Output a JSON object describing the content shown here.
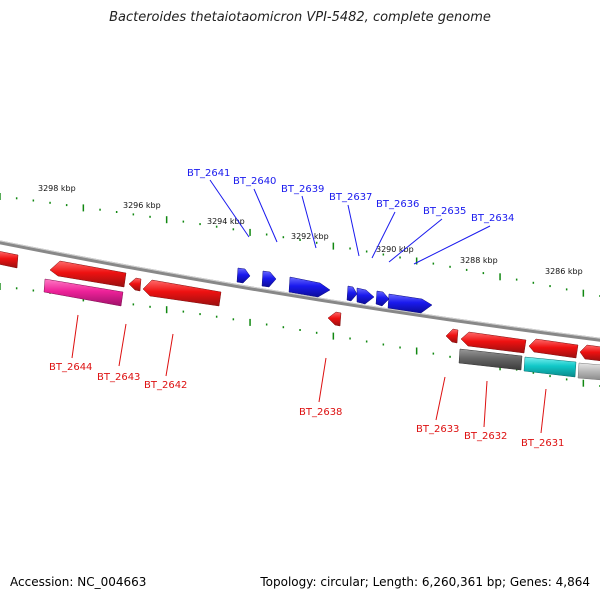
{
  "title": "Bacteroides thetaiotaomicron VPI-5482, complete genome",
  "accession": "Accession: NC_004663",
  "summary": "Topology: circular; Length: 6,260,361 bp; Genes: 4,864",
  "colors": {
    "forward_gene": "#1a1aee",
    "reverse_gene": "#ee1111",
    "pink_gene": "#ee2299",
    "dark_gray_gene": "#666666",
    "cyan_gene": "#11c8c8",
    "light_gray_gene": "#bbbbbb",
    "tick_green": "#118811",
    "backbone": "#888888"
  },
  "kbp_labels": [
    "3298 kbp",
    "3296 kbp",
    "3294 kbp",
    "3292 kbp",
    "3290 kbp",
    "3288 kbp",
    "3286 kbp"
  ],
  "forward_genes": [
    "BT_2641",
    "BT_2640",
    "BT_2639",
    "BT_2637",
    "BT_2636",
    "BT_2635",
    "BT_2634"
  ],
  "reverse_genes": [
    "BT_2644",
    "BT_2643",
    "BT_2642",
    "BT_2638",
    "BT_2633",
    "BT_2632",
    "BT_2631"
  ]
}
